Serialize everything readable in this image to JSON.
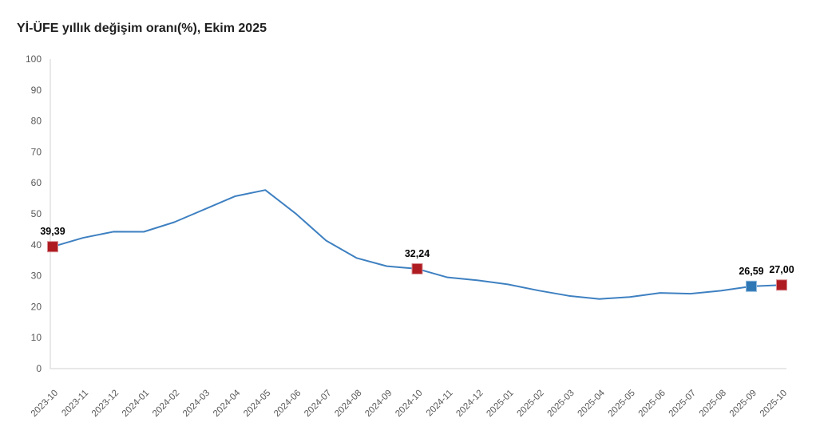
{
  "page": {
    "background": "#ffffff"
  },
  "chart_data": {
    "type": "line",
    "title": "Yİ-ÜFE yıllık değişim oranı(%), Ekim 2025",
    "x": [
      "2023-10",
      "2023-11",
      "2023-12",
      "2024-01",
      "2024-02",
      "2024-03",
      "2024-04",
      "2024-05",
      "2024-06",
      "2024-07",
      "2024-08",
      "2024-09",
      "2024-10",
      "2024-11",
      "2024-12",
      "2025-01",
      "2025-02",
      "2025-03",
      "2025-04",
      "2025-05",
      "2025-06",
      "2025-07",
      "2025-08",
      "2025-09",
      "2025-10"
    ],
    "values": [
      39.39,
      42.25,
      44.22,
      44.2,
      47.29,
      51.47,
      55.66,
      57.68,
      50.09,
      41.37,
      35.75,
      33.09,
      32.24,
      29.47,
      28.52,
      27.2,
      25.21,
      23.5,
      22.5,
      23.13,
      24.45,
      24.19,
      25.16,
      26.59,
      27.0
    ],
    "ylim": [
      0,
      100
    ],
    "ytick_step": 10,
    "grid": false,
    "legend": "none",
    "xlabel": "",
    "ylabel": "",
    "line_color": "#3E80C1",
    "axis_color": "#D0D0D0",
    "tick_label_color": "#595959",
    "data_label_color": "#000000",
    "title_color": "#1F1F1F",
    "highlighted_points": [
      {
        "x": "2023-10",
        "label": "39,39",
        "value": 39.39,
        "marker_color": "#AE1B21",
        "marker_edge": "#D88F93"
      },
      {
        "x": "2024-10",
        "label": "32,24",
        "value": 32.24,
        "marker_color": "#AE1B21",
        "marker_edge": "#D88F93"
      },
      {
        "x": "2025-09",
        "label": "26,59",
        "value": 26.59,
        "marker_color": "#2E77B5",
        "marker_edge": "#8FBADC"
      },
      {
        "x": "2025-10",
        "label": "27,00",
        "value": 27.0,
        "marker_color": "#AE1B21",
        "marker_edge": "#D88F93"
      }
    ]
  }
}
